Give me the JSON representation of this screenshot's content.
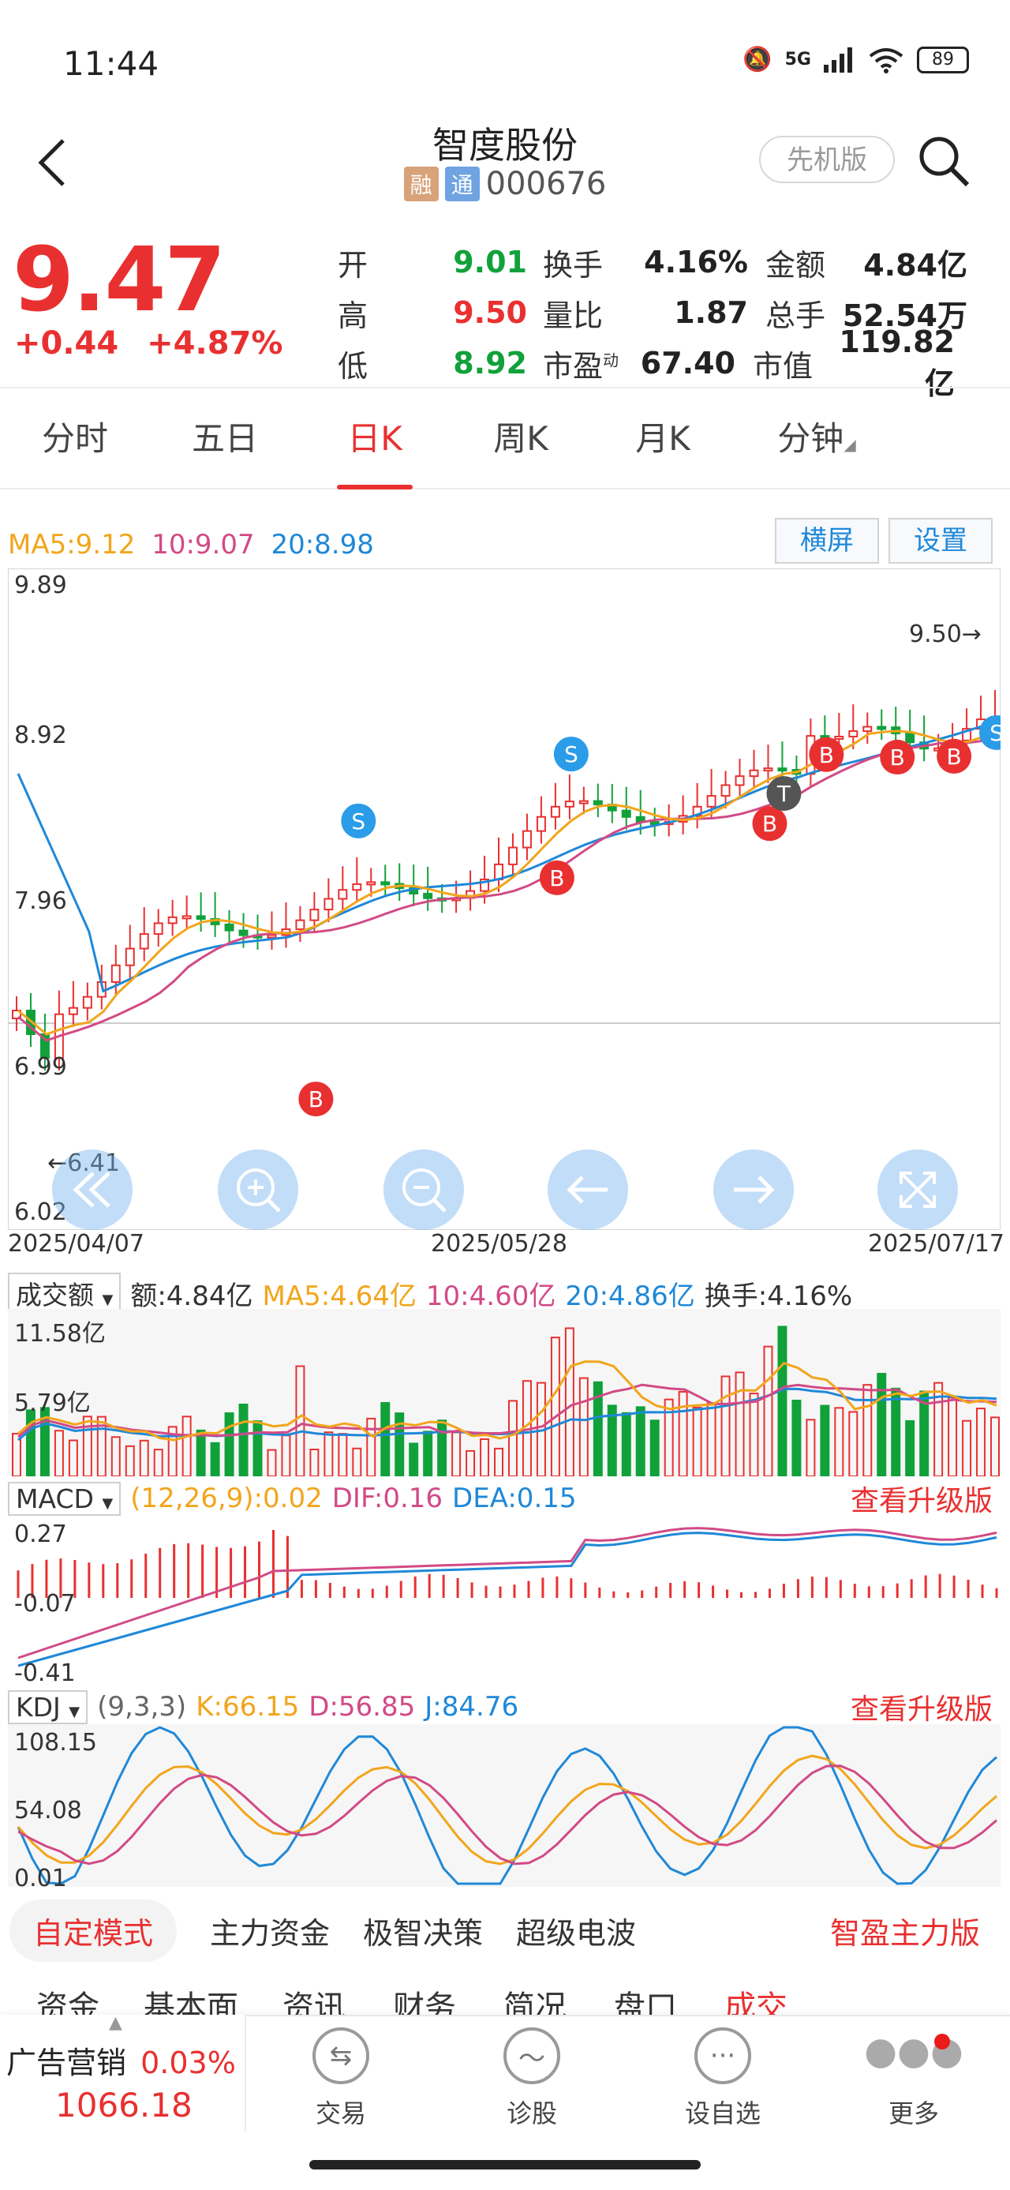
{
  "status_bar": {
    "time": "11:44",
    "network": "5G",
    "battery": "89"
  },
  "header": {
    "title": "智度股份",
    "tag_rong": "融",
    "tag_tong": "通",
    "code": "000676",
    "pro_button": "先机版"
  },
  "quote": {
    "price": "9.47",
    "change": "+0.44",
    "change_pct": "+4.87%",
    "rows": [
      {
        "l1": "开",
        "v1": "9.01",
        "l2": "换手",
        "v2": "4.16%",
        "l3": "金额",
        "v3": "4.84亿"
      },
      {
        "l1": "高",
        "v1": "9.50",
        "l2": "量比",
        "v2": "1.87",
        "l3": "总手",
        "v3": "52.54万"
      },
      {
        "l1": "低",
        "v1": "8.92",
        "l2": "市盈",
        "l2_sup": "动",
        "v2": "67.40",
        "l3": "市值",
        "v3": "119.82亿"
      }
    ]
  },
  "period_tabs": [
    "分时",
    "五日",
    "日K",
    "周K",
    "月K",
    "分钟"
  ],
  "active_period": "日K",
  "kline": {
    "ma5": "MA5:9.12",
    "ma10": "10:9.07",
    "ma20": "20:8.98",
    "landscape_button": "横屏",
    "settings_button": "设置",
    "y_ticks": [
      "9.89",
      "8.92",
      "7.96",
      "6.99",
      "6.02"
    ],
    "x_dates": [
      "2025/04/07",
      "2025/05/28",
      "2025/07/17"
    ],
    "high_marker": "9.50",
    "low_marker": "6.41",
    "markers": [
      "S",
      "B",
      "T"
    ]
  },
  "volume": {
    "selector": "成交额",
    "amount": "额:4.84亿",
    "ma5": "MA5:4.64亿",
    "ma10": "10:4.60亿",
    "ma20": "20:4.86亿",
    "turnover": "换手:4.16%",
    "y_ticks": [
      "11.58亿",
      "5.79亿"
    ]
  },
  "macd": {
    "selector": "MACD",
    "params": "(12,26,9):0.02",
    "dif": "DIF:0.16",
    "dea": "DEA:0.15",
    "upgrade": "查看升级版",
    "y_ticks": [
      "0.27",
      "-0.07",
      "-0.41"
    ]
  },
  "kdj": {
    "selector": "KDJ",
    "params": "(9,3,3)",
    "k": "K:66.15",
    "d": "D:56.85",
    "j": "J:84.76",
    "upgrade": "查看升级版",
    "y_ticks": [
      "108.15",
      "54.08",
      "0.01"
    ]
  },
  "mode_bar": {
    "active": "自定模式",
    "items": [
      "主力资金",
      "极智决策",
      "超级电波"
    ],
    "right": "智盈主力版"
  },
  "info_tabs": [
    "资金",
    "基本面",
    "资讯",
    "财务",
    "简况",
    "盘口",
    "成交"
  ],
  "ad": {
    "label": "广告营销",
    "pct": "0.03%",
    "value": "1066.18"
  },
  "bottom_nav": [
    "交易",
    "诊股",
    "设自选",
    "更多"
  ],
  "colors": {
    "up": "#e93030",
    "down": "#11a13a",
    "ma5": "#f2a51c",
    "ma10": "#d24a86",
    "ma20": "#1f88d8"
  }
}
